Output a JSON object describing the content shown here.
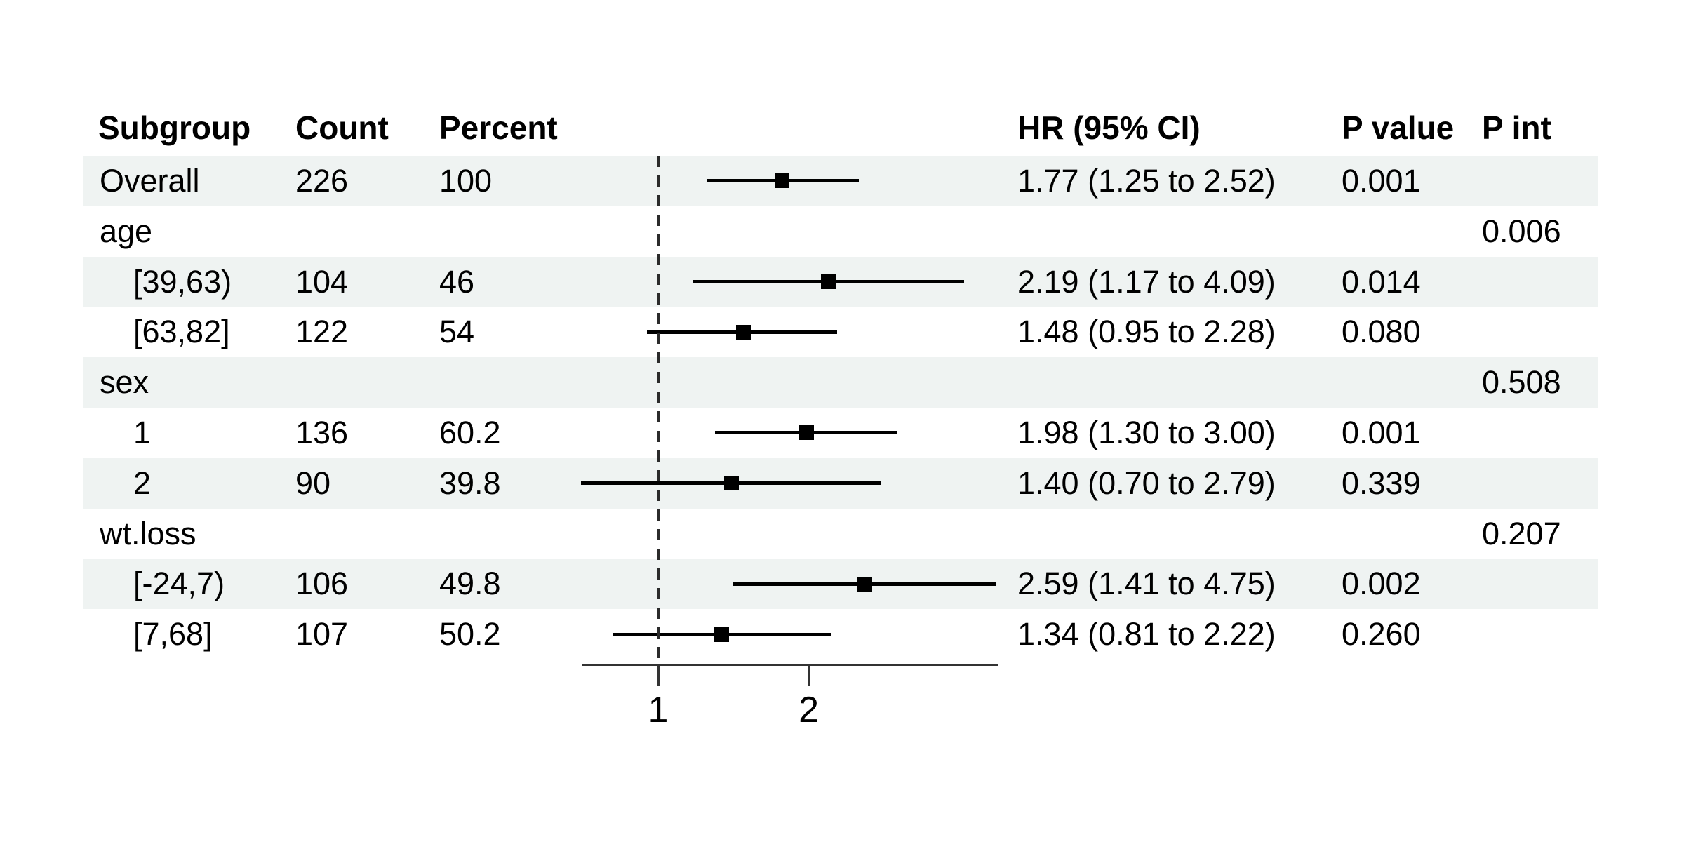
{
  "header": {
    "subgroup": "Subgroup",
    "count": "Count",
    "percent": "Percent",
    "hr": "HR (95% CI)",
    "p_value": "P value",
    "p_int": "P int"
  },
  "colors": {
    "stripe": "#eff3f2",
    "text": "#000000",
    "ci_line": "#000000",
    "marker": "#000000",
    "axis": "#333333",
    "reference_line": "#2b2b2b"
  },
  "chart_data": {
    "type": "forest",
    "xscale": "log2",
    "xlim": [
      0.7,
      4.75
    ],
    "x_ticks": [
      1,
      2
    ],
    "reference_line": 1,
    "grid": false,
    "columns": [
      "Subgroup",
      "Count",
      "Percent",
      "HR (95% CI)",
      "P value",
      "P int"
    ],
    "rows": [
      {
        "subgroup": "Overall",
        "indent": false,
        "shaded": true,
        "count": "226",
        "percent": "100",
        "est": 1.77,
        "low": 1.25,
        "high": 2.52,
        "hr_text": "1.77 (1.25 to 2.52)",
        "p_value": "0.001",
        "p_int": ""
      },
      {
        "subgroup": "age",
        "indent": false,
        "shaded": false,
        "count": "",
        "percent": "",
        "est": null,
        "low": null,
        "high": null,
        "hr_text": "",
        "p_value": "",
        "p_int": "0.006"
      },
      {
        "subgroup": "[39,63)",
        "indent": true,
        "shaded": true,
        "count": "104",
        "percent": "46",
        "est": 2.19,
        "low": 1.17,
        "high": 4.09,
        "hr_text": "2.19 (1.17 to 4.09)",
        "p_value": "0.014",
        "p_int": ""
      },
      {
        "subgroup": "[63,82]",
        "indent": true,
        "shaded": false,
        "count": "122",
        "percent": "54",
        "est": 1.48,
        "low": 0.95,
        "high": 2.28,
        "hr_text": "1.48 (0.95 to 2.28)",
        "p_value": "0.080",
        "p_int": ""
      },
      {
        "subgroup": "sex",
        "indent": false,
        "shaded": true,
        "count": "",
        "percent": "",
        "est": null,
        "low": null,
        "high": null,
        "hr_text": "",
        "p_value": "",
        "p_int": "0.508"
      },
      {
        "subgroup": "1",
        "indent": true,
        "shaded": false,
        "count": "136",
        "percent": "60.2",
        "est": 1.98,
        "low": 1.3,
        "high": 3.0,
        "hr_text": "1.98 (1.30 to 3.00)",
        "p_value": "0.001",
        "p_int": ""
      },
      {
        "subgroup": "2",
        "indent": true,
        "shaded": true,
        "count": "90",
        "percent": "39.8",
        "est": 1.4,
        "low": 0.7,
        "high": 2.79,
        "hr_text": "1.40 (0.70 to 2.79)",
        "p_value": "0.339",
        "p_int": ""
      },
      {
        "subgroup": "wt.loss",
        "indent": false,
        "shaded": false,
        "count": "",
        "percent": "",
        "est": null,
        "low": null,
        "high": null,
        "hr_text": "",
        "p_value": "",
        "p_int": "0.207"
      },
      {
        "subgroup": "[-24,7)",
        "indent": true,
        "shaded": true,
        "count": "106",
        "percent": "49.8",
        "est": 2.59,
        "low": 1.41,
        "high": 4.75,
        "hr_text": "2.59 (1.41 to 4.75)",
        "p_value": "0.002",
        "p_int": ""
      },
      {
        "subgroup": "[7,68]",
        "indent": true,
        "shaded": false,
        "count": "107",
        "percent": "50.2",
        "est": 1.34,
        "low": 0.81,
        "high": 2.22,
        "hr_text": "1.34 (0.81 to 2.22)",
        "p_value": "0.260",
        "p_int": ""
      }
    ]
  }
}
